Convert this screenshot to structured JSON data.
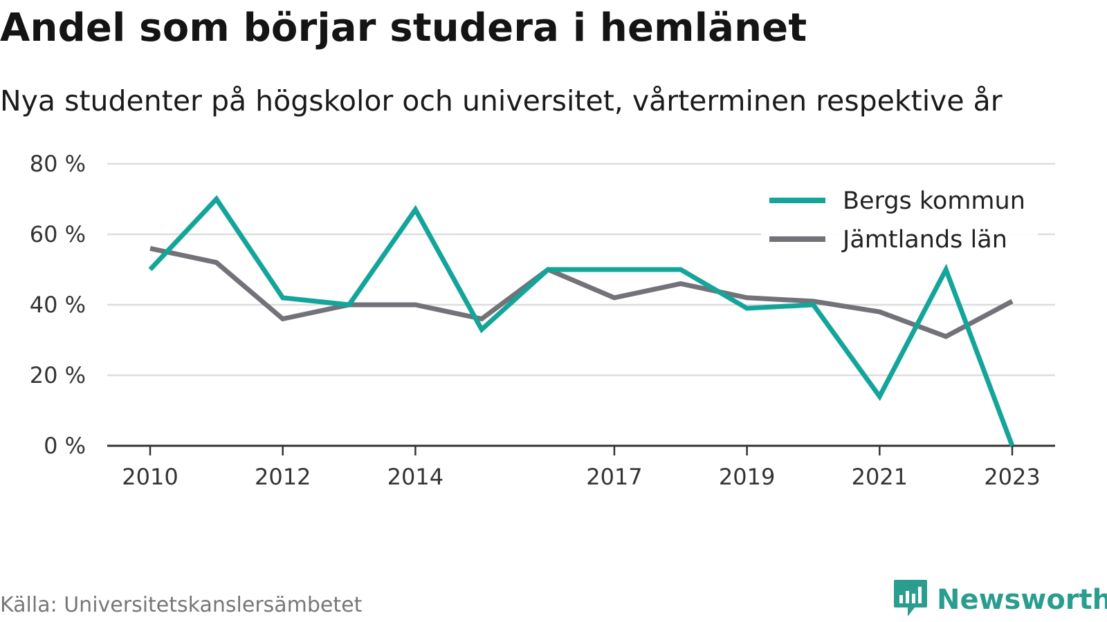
{
  "title": "Andel som börjar studera i hemlänet",
  "subtitle": "Nya studenter på högskolor och universitet, vårterminen respektive år",
  "source": "Källa: Universitetskanslersämbetet",
  "brand": {
    "name": "Newsworthy",
    "icon": "newsworthy-logo-icon",
    "color": "#2a9d8f"
  },
  "chart_data": {
    "type": "line",
    "title": "Andel som börjar studera i hemlänet",
    "subtitle": "Nya studenter på högskolor och universitet, vårterminen respektive år",
    "xlabel": "",
    "ylabel": "",
    "x": [
      2010,
      2011,
      2012,
      2013,
      2014,
      2015,
      2016,
      2017,
      2018,
      2019,
      2020,
      2021,
      2022,
      2023
    ],
    "x_tick_labels": [
      "2010",
      "2012",
      "2014",
      "2017",
      "2019",
      "2021",
      "2023"
    ],
    "ylim": [
      0,
      80
    ],
    "y_ticks": [
      0,
      20,
      40,
      60,
      80
    ],
    "y_tick_labels": [
      "0 %",
      "20 %",
      "40 %",
      "60 %",
      "80 %"
    ],
    "grid": true,
    "legend_position": "top-right",
    "series": [
      {
        "name": "Bergs kommun",
        "color": "#14a59a",
        "values": [
          50,
          70,
          42,
          40,
          67,
          33,
          50,
          50,
          50,
          39,
          40,
          14,
          50,
          0
        ]
      },
      {
        "name": "Jämtlands län",
        "color": "#727278",
        "values": [
          56,
          52,
          36,
          40,
          40,
          36,
          50,
          42,
          46,
          42,
          41,
          38,
          31,
          41
        ]
      }
    ]
  }
}
